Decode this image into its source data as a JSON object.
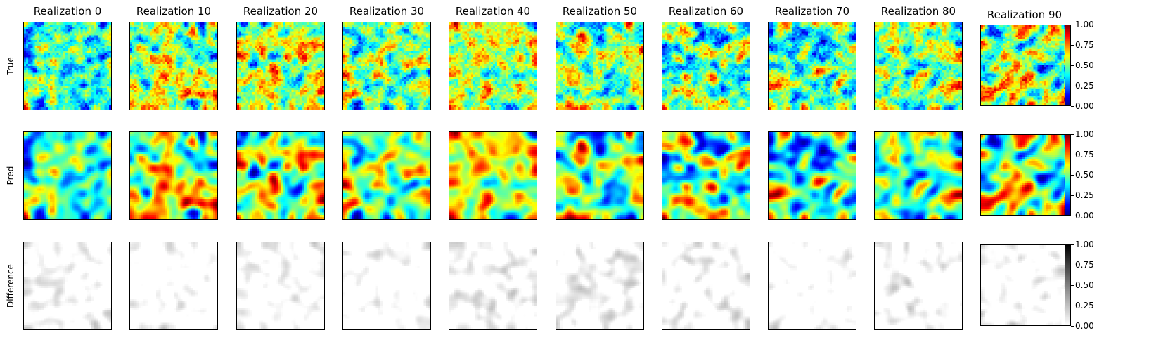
{
  "chart_data": {
    "type": "heatmap",
    "columns": [
      "Realization 0",
      "Realization 10",
      "Realization 20",
      "Realization 30",
      "Realization 40",
      "Realization 50",
      "Realization 60",
      "Realization 70",
      "Realization 80",
      "Realization 90"
    ],
    "rows": [
      "True",
      "Pred",
      "Difference"
    ],
    "colormaps": {
      "True": "jet",
      "Pred": "jet",
      "Difference": "greys"
    },
    "value_range": [
      0,
      1
    ],
    "colorbar_ticks": [
      "0.00",
      "0.25",
      "0.50",
      "0.75",
      "1.00"
    ],
    "axis_ticks_visible": false
  },
  "colors": {
    "jet": [
      "#00008f",
      "#0000ff",
      "#007fff",
      "#00ffff",
      "#7fff7f",
      "#ffff00",
      "#ff7f00",
      "#ff0000",
      "#7f0000"
    ],
    "greys": [
      "#ffffff",
      "#000000"
    ]
  }
}
